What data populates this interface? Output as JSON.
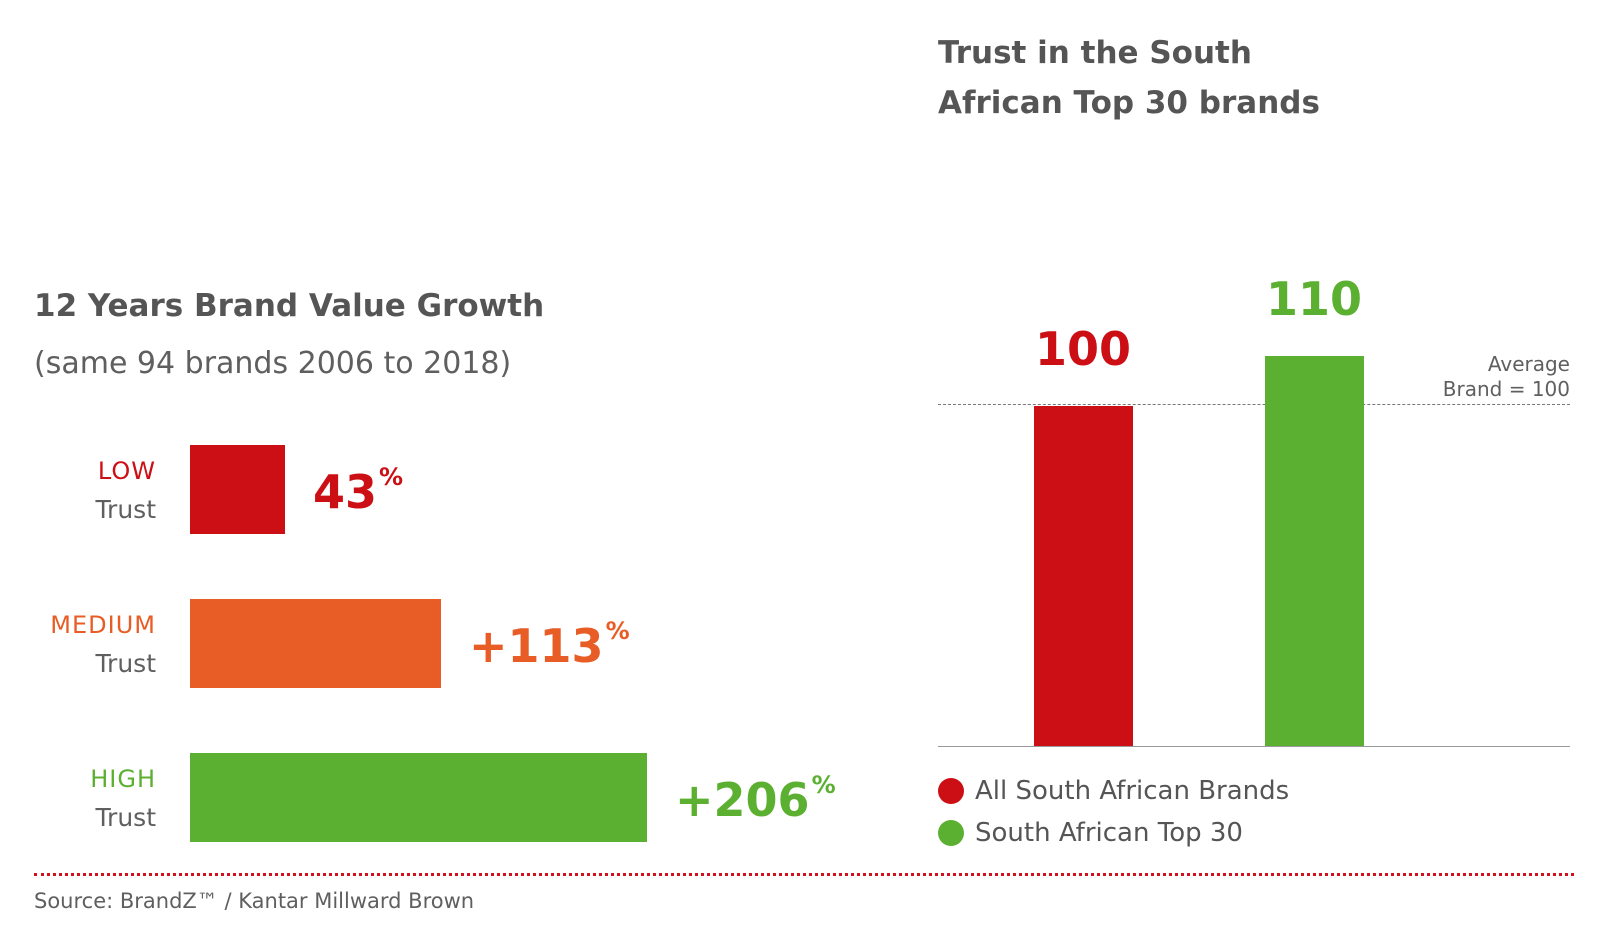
{
  "left_chart": {
    "title": "12 Years Brand Value Growth",
    "subtitle": "(same 94 brands 2006 to 2018)"
  },
  "right_chart": {
    "title": "Trust in the South African Top 30 brands",
    "reference_label_line1": "Average",
    "reference_label_line2": "Brand = 100"
  },
  "chart_data": [
    {
      "type": "bar",
      "orientation": "horizontal",
      "title": "12 Years Brand Value Growth",
      "subtitle": "(same 94 brands 2006 to 2018)",
      "categories": [
        {
          "level": "LOW",
          "word": "Trust"
        },
        {
          "level": "MEDIUM",
          "word": "Trust"
        },
        {
          "level": "HIGH",
          "word": "Trust"
        }
      ],
      "values": [
        43,
        113,
        206
      ],
      "value_labels": [
        "43",
        "+113",
        "+206"
      ],
      "unit": "%",
      "colors": [
        "#cc0f14",
        "#e85d25",
        "#5cb031"
      ],
      "xlim": [
        0,
        206
      ],
      "grid": false
    },
    {
      "type": "bar",
      "orientation": "vertical",
      "title": "Trust in the South African Top 30 brands",
      "series": [
        {
          "name": "All South African Brands",
          "value": 100,
          "label": "100",
          "color": "#cc0f14"
        },
        {
          "name": "South African Top 30",
          "value": 110,
          "label": "110",
          "color": "#5cb031"
        }
      ],
      "reference_line": {
        "value": 100,
        "label": "Average Brand = 100"
      },
      "ylim": [
        0,
        110
      ],
      "legend": "bottom-left",
      "grid": false
    }
  ],
  "footer": {
    "source": "Source: BrandZ™ / Kantar Millward Brown"
  }
}
